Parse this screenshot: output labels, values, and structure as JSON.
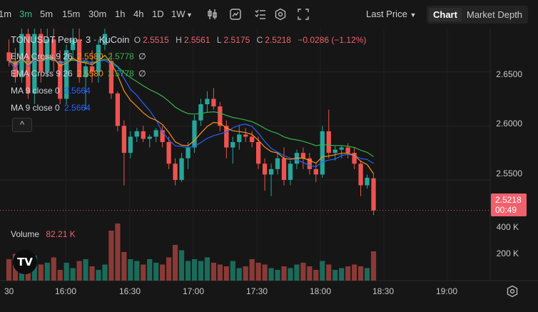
{
  "toolbar": {
    "timeframes": [
      "1m",
      "3m",
      "5m",
      "15m",
      "30m",
      "1h",
      "4h",
      "1D",
      "1W"
    ],
    "active_timeframe": "3m",
    "price_type": "Last Price",
    "view_chart": "Chart",
    "view_depth": "Market Depth"
  },
  "legend": {
    "symbol": "TONUSDT Perp · 3 · KuCoin",
    "o_label": "O",
    "o": "2.5515",
    "h_label": "H",
    "h": "2.5561",
    "l_label": "L",
    "l": "2.5175",
    "c_label": "C",
    "c": "2.5218",
    "change": "−0.0286 (−1.12%)",
    "ema1_label": "EMA Cross 9 26",
    "ema1_a": "2.5580",
    "ema1_b": "2.5778",
    "ema1_c": "∅",
    "ema2_label": "EMA Cross 9 26",
    "ema2_a": "2.5580",
    "ema2_b": "2.5778",
    "ema2_c": "∅",
    "ma1_label": "MA 9 close 0",
    "ma1_v": "2.5664",
    "ma2_label": "MA 9 close 0",
    "ma2_v": "2.5664",
    "collapse": "^"
  },
  "price_axis": [
    "2.6500",
    "2.6000",
    "2.5500"
  ],
  "volume_axis": [
    "400 K",
    "200 K"
  ],
  "current_price": "2.5218",
  "countdown": "00:49",
  "volume": {
    "label": "Volume",
    "value": "82.21 K"
  },
  "time_axis": [
    "30",
    "16:00",
    "16:30",
    "17:00",
    "17:30",
    "18:00",
    "18:30",
    "19:00"
  ],
  "colors": {
    "up": "#26a69a",
    "down": "#ef5350",
    "ema_fast": "#f7931a",
    "ema_slow": "#37b24d",
    "ma": "#2962ff",
    "accent": "#2fbd85"
  },
  "chart_data": {
    "type": "candlestick",
    "ylim": [
      2.515,
      2.69
    ],
    "candles": [
      {
        "o": 2.668,
        "h": 2.68,
        "l": 2.655,
        "c": 2.66
      },
      {
        "o": 2.66,
        "h": 2.672,
        "l": 2.64,
        "c": 2.645
      },
      {
        "o": 2.645,
        "h": 2.69,
        "l": 2.64,
        "c": 2.685
      },
      {
        "o": 2.685,
        "h": 2.69,
        "l": 2.625,
        "c": 2.63
      },
      {
        "o": 2.63,
        "h": 2.69,
        "l": 2.62,
        "c": 2.685
      },
      {
        "o": 2.685,
        "h": 2.69,
        "l": 2.64,
        "c": 2.65
      },
      {
        "o": 2.65,
        "h": 2.69,
        "l": 2.645,
        "c": 2.68
      },
      {
        "o": 2.68,
        "h": 2.69,
        "l": 2.65,
        "c": 2.66
      },
      {
        "o": 2.66,
        "h": 2.67,
        "l": 2.62,
        "c": 2.625
      },
      {
        "o": 2.625,
        "h": 2.675,
        "l": 2.62,
        "c": 2.67
      },
      {
        "o": 2.67,
        "h": 2.69,
        "l": 2.66,
        "c": 2.68
      },
      {
        "o": 2.68,
        "h": 2.69,
        "l": 2.64,
        "c": 2.645
      },
      {
        "o": 2.645,
        "h": 2.66,
        "l": 2.615,
        "c": 2.655
      },
      {
        "o": 2.655,
        "h": 2.67,
        "l": 2.64,
        "c": 2.65
      },
      {
        "o": 2.65,
        "h": 2.68,
        "l": 2.64,
        "c": 2.675
      },
      {
        "o": 2.675,
        "h": 2.69,
        "l": 2.67,
        "c": 2.685
      },
      {
        "o": 2.66,
        "h": 2.668,
        "l": 2.625,
        "c": 2.63
      },
      {
        "o": 2.63,
        "h": 2.632,
        "l": 2.595,
        "c": 2.6
      },
      {
        "o": 2.6,
        "h": 2.605,
        "l": 2.545,
        "c": 2.575
      },
      {
        "o": 2.575,
        "h": 2.595,
        "l": 2.57,
        "c": 2.59
      },
      {
        "o": 2.59,
        "h": 2.598,
        "l": 2.585,
        "c": 2.595
      },
      {
        "o": 2.595,
        "h": 2.6,
        "l": 2.585,
        "c": 2.588
      },
      {
        "o": 2.588,
        "h": 2.592,
        "l": 2.58,
        "c": 2.59
      },
      {
        "o": 2.59,
        "h": 2.598,
        "l": 2.585,
        "c": 2.596
      },
      {
        "o": 2.596,
        "h": 2.6,
        "l": 2.58,
        "c": 2.585
      },
      {
        "o": 2.585,
        "h": 2.59,
        "l": 2.56,
        "c": 2.565
      },
      {
        "o": 2.565,
        "h": 2.57,
        "l": 2.545,
        "c": 2.55
      },
      {
        "o": 2.55,
        "h": 2.575,
        "l": 2.548,
        "c": 2.57
      },
      {
        "o": 2.57,
        "h": 2.585,
        "l": 2.56,
        "c": 2.58
      },
      {
        "o": 2.58,
        "h": 2.61,
        "l": 2.575,
        "c": 2.605
      },
      {
        "o": 2.605,
        "h": 2.625,
        "l": 2.6,
        "c": 2.62
      },
      {
        "o": 2.62,
        "h": 2.632,
        "l": 2.612,
        "c": 2.625
      },
      {
        "o": 2.625,
        "h": 2.635,
        "l": 2.615,
        "c": 2.618
      },
      {
        "o": 2.618,
        "h": 2.622,
        "l": 2.595,
        "c": 2.6
      },
      {
        "o": 2.6,
        "h": 2.605,
        "l": 2.57,
        "c": 2.58
      },
      {
        "o": 2.58,
        "h": 2.59,
        "l": 2.565,
        "c": 2.585
      },
      {
        "o": 2.585,
        "h": 2.6,
        "l": 2.578,
        "c": 2.592
      },
      {
        "o": 2.592,
        "h": 2.598,
        "l": 2.585,
        "c": 2.59
      },
      {
        "o": 2.59,
        "h": 2.595,
        "l": 2.58,
        "c": 2.585
      },
      {
        "o": 2.585,
        "h": 2.59,
        "l": 2.56,
        "c": 2.565
      },
      {
        "o": 2.565,
        "h": 2.57,
        "l": 2.54,
        "c": 2.555
      },
      {
        "o": 2.555,
        "h": 2.565,
        "l": 2.535,
        "c": 2.56
      },
      {
        "o": 2.56,
        "h": 2.575,
        "l": 2.555,
        "c": 2.57
      },
      {
        "o": 2.57,
        "h": 2.58,
        "l": 2.545,
        "c": 2.55
      },
      {
        "o": 2.55,
        "h": 2.568,
        "l": 2.545,
        "c": 2.565
      },
      {
        "o": 2.565,
        "h": 2.578,
        "l": 2.56,
        "c": 2.575
      },
      {
        "o": 2.575,
        "h": 2.58,
        "l": 2.56,
        "c": 2.57
      },
      {
        "o": 2.57,
        "h": 2.575,
        "l": 2.555,
        "c": 2.56
      },
      {
        "o": 2.56,
        "h": 2.565,
        "l": 2.548,
        "c": 2.555
      },
      {
        "o": 2.555,
        "h": 2.6,
        "l": 2.552,
        "c": 2.595
      },
      {
        "o": 2.595,
        "h": 2.615,
        "l": 2.57,
        "c": 2.575
      },
      {
        "o": 2.575,
        "h": 2.582,
        "l": 2.568,
        "c": 2.578
      },
      {
        "o": 2.578,
        "h": 2.582,
        "l": 2.57,
        "c": 2.58
      },
      {
        "o": 2.58,
        "h": 2.584,
        "l": 2.57,
        "c": 2.575
      },
      {
        "o": 2.575,
        "h": 2.58,
        "l": 2.56,
        "c": 2.565
      },
      {
        "o": 2.565,
        "h": 2.568,
        "l": 2.535,
        "c": 2.545
      },
      {
        "o": 2.545,
        "h": 2.555,
        "l": 2.542,
        "c": 2.552
      },
      {
        "o": 2.5515,
        "h": 2.5561,
        "l": 2.5175,
        "c": 2.5218
      }
    ],
    "volume": [
      60,
      75,
      55,
      40,
      70,
      45,
      50,
      65,
      30,
      50,
      35,
      55,
      60,
      40,
      30,
      45,
      140,
      160,
      80,
      60,
      55,
      45,
      60,
      50,
      45,
      65,
      100,
      85,
      55,
      60,
      55,
      65,
      50,
      45,
      40,
      55,
      35,
      40,
      60,
      50,
      45,
      35,
      30,
      40,
      35,
      45,
      50,
      40,
      30,
      55,
      45,
      30,
      35,
      40,
      45,
      40,
      35,
      82
    ]
  }
}
